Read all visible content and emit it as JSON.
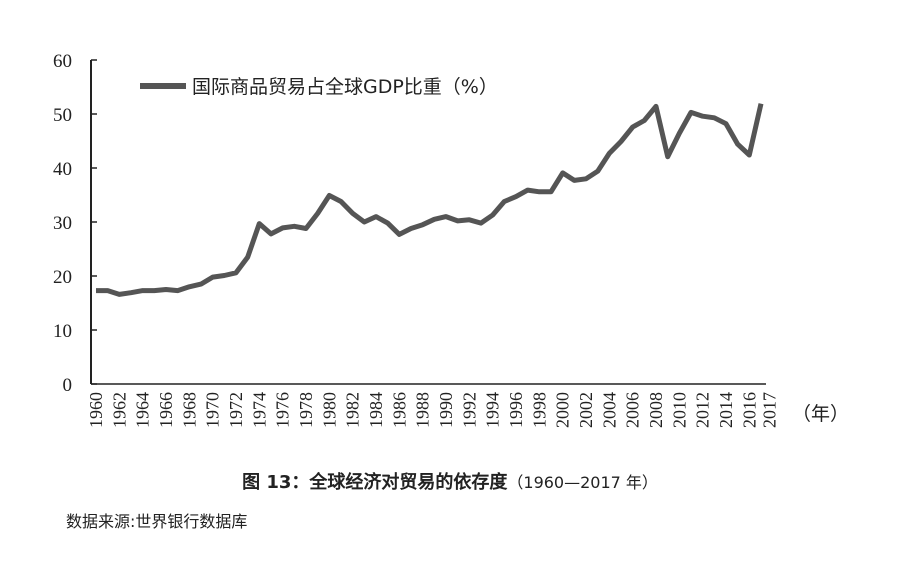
{
  "chart_data": {
    "type": "line",
    "title": "图 13：全球经济对贸易的依存度",
    "title_suffix": "（1960—2017 年）",
    "source": "数据来源:世界银行数据库",
    "xlabel": "（年）",
    "ylabel": "",
    "ylim": [
      0,
      60
    ],
    "yticks": [
      0,
      10,
      20,
      30,
      40,
      50,
      60
    ],
    "xlim": [
      1960,
      2017
    ],
    "xticks": [
      1960,
      1962,
      1964,
      1966,
      1968,
      1970,
      1972,
      1974,
      1976,
      1978,
      1980,
      1982,
      1984,
      1986,
      1988,
      1990,
      1992,
      1994,
      1996,
      1998,
      2000,
      2002,
      2004,
      2006,
      2008,
      2010,
      2012,
      2014,
      2016,
      2017
    ],
    "grid": false,
    "legend_position": "top-left",
    "series": [
      {
        "name": "国际商品贸易占全球GDP比重（%）",
        "color": "#555555",
        "x": [
          1960,
          1961,
          1962,
          1963,
          1964,
          1965,
          1966,
          1967,
          1968,
          1969,
          1970,
          1971,
          1972,
          1973,
          1974,
          1975,
          1976,
          1977,
          1978,
          1979,
          1980,
          1981,
          1982,
          1983,
          1984,
          1985,
          1986,
          1987,
          1988,
          1989,
          1990,
          1991,
          1992,
          1993,
          1994,
          1995,
          1996,
          1997,
          1998,
          1999,
          2000,
          2001,
          2002,
          2003,
          2004,
          2005,
          2006,
          2007,
          2008,
          2009,
          2010,
          2011,
          2012,
          2013,
          2014,
          2015,
          2016,
          2017
        ],
        "values": [
          17.3,
          17.3,
          16.6,
          16.9,
          17.3,
          17.3,
          17.5,
          17.3,
          18.0,
          18.5,
          19.8,
          20.1,
          20.6,
          23.5,
          29.7,
          27.8,
          28.9,
          29.2,
          28.8,
          31.6,
          34.9,
          33.8,
          31.6,
          30.0,
          31.0,
          29.8,
          27.7,
          28.8,
          29.5,
          30.5,
          31.0,
          30.2,
          30.4,
          29.8,
          31.3,
          33.8,
          34.7,
          35.9,
          35.6,
          35.6,
          39.1,
          37.7,
          38.0,
          39.4,
          42.7,
          44.9,
          47.6,
          48.8,
          51.4,
          42.1,
          46.4,
          50.3,
          49.6,
          49.3,
          48.2,
          44.4,
          42.4,
          51.9
        ]
      }
    ]
  }
}
